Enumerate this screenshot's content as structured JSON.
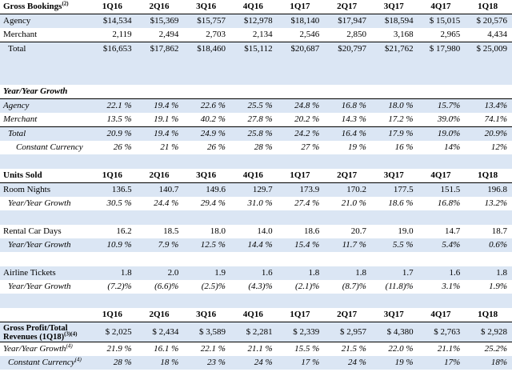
{
  "columns": [
    "1Q16",
    "2Q16",
    "3Q16",
    "4Q16",
    "1Q17",
    "2Q17",
    "3Q17",
    "4Q17",
    "1Q18"
  ],
  "gross_bookings": {
    "title": "Gross Bookings",
    "title_sup": "(2)",
    "rows": [
      {
        "label": "Agency",
        "values": [
          "$14,534",
          "$15,369",
          "$15,757",
          "$12,978",
          "$18,140",
          "$17,947",
          "$18,594",
          "$ 15,015",
          "$ 20,576"
        ]
      },
      {
        "label": "Merchant",
        "values": [
          "2,119",
          "2,494",
          "2,703",
          "2,134",
          "2,546",
          "2,850",
          "3,168",
          "2,965",
          "4,434"
        ]
      },
      {
        "label": "Total",
        "values": [
          "$16,653",
          "$17,862",
          "$18,460",
          "$15,112",
          "$20,687",
          "$20,797",
          "$21,762",
          "$ 17,980",
          "$ 25,009"
        ]
      }
    ]
  },
  "yoy_growth": {
    "title": "Year/Year Growth",
    "rows": [
      {
        "label": "Agency",
        "values": [
          "22.1 %",
          "19.4 %",
          "22.6 %",
          "25.5 %",
          "24.8 %",
          "16.8 %",
          "18.0 %",
          "15.7%",
          "13.4%"
        ]
      },
      {
        "label": "Merchant",
        "values": [
          "13.5 %",
          "19.1 %",
          "40.2 %",
          "27.8 %",
          "20.2 %",
          "14.3 %",
          "17.2 %",
          "39.0%",
          "74.1%"
        ]
      },
      {
        "label": "Total",
        "values": [
          "20.9 %",
          "19.4 %",
          "24.9 %",
          "25.8 %",
          "24.2 %",
          "16.4 %",
          "17.9 %",
          "19.0%",
          "20.9%"
        ]
      },
      {
        "label": "Constant Currency",
        "values": [
          "26 %",
          "21 %",
          "26 %",
          "28 %",
          "27 %",
          "19 %",
          "16 %",
          "14%",
          "12%"
        ]
      }
    ]
  },
  "units_sold": {
    "title": "Units Sold",
    "room_nights": {
      "label": "Room Nights",
      "values": [
        "136.5",
        "140.7",
        "149.6",
        "129.7",
        "173.9",
        "170.2",
        "177.5",
        "151.5",
        "196.8"
      ]
    },
    "room_nights_growth": {
      "label": "Year/Year Growth",
      "values": [
        "30.5 %",
        "24.4 %",
        "29.4 %",
        "31.0 %",
        "27.4 %",
        "21.0 %",
        "18.6 %",
        "16.8%",
        "13.2%"
      ]
    },
    "rental_car_days": {
      "label": "Rental Car Days",
      "values": [
        "16.2",
        "18.5",
        "18.0",
        "14.0",
        "18.6",
        "20.7",
        "19.0",
        "14.7",
        "18.7"
      ]
    },
    "rental_car_growth": {
      "label": "Year/Year Growth",
      "values": [
        "10.9 %",
        "7.9 %",
        "12.5 %",
        "14.4 %",
        "15.4 %",
        "11.7 %",
        "5.5 %",
        "5.4%",
        "0.6%"
      ]
    },
    "airline_tickets": {
      "label": "Airline Tickets",
      "values": [
        "1.8",
        "2.0",
        "1.9",
        "1.6",
        "1.8",
        "1.8",
        "1.7",
        "1.6",
        "1.8"
      ]
    },
    "airline_growth": {
      "label": "Year/Year Growth",
      "values": [
        "(7.2)%",
        "(6.6)%",
        "(2.5)%",
        "(4.3)%",
        "(2.1)%",
        "(8.7)%",
        "(11.8)%",
        "3.1%",
        "1.9%"
      ]
    }
  },
  "gross_profit": {
    "title_line1": "Gross Profit/Total",
    "title_line2": "Revenues (1Q18)",
    "title_sup": "(3)(4)",
    "values": [
      "$ 2,025",
      "$ 2,434",
      "$ 3,589",
      "$ 2,281",
      "$ 2,339",
      "$ 2,957",
      "$ 4,380",
      "$ 2,763",
      "$ 2,928"
    ],
    "growth": {
      "label": "Year/Year Growth",
      "label_sup": "(4)",
      "values": [
        "21.9 %",
        "16.1 %",
        "22.1 %",
        "21.1 %",
        "15.5 %",
        "21.5 %",
        "22.0 %",
        "21.1%",
        "25.2%"
      ]
    },
    "constant_currency": {
      "label": "Constant Currency",
      "label_sup": "(4)",
      "values": [
        "28 %",
        "18 %",
        "23 %",
        "24 %",
        "17 %",
        "24 %",
        "19 %",
        "17%",
        "18%"
      ]
    }
  },
  "colors": {
    "band": "#dbe6f4",
    "rule": "#000000"
  }
}
